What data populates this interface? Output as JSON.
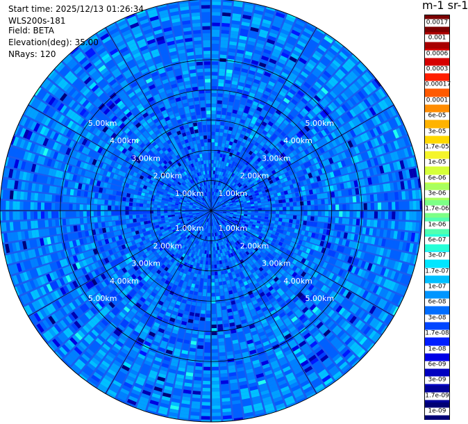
{
  "info": {
    "start_time": "Start time: 2025/12/13 01:26:34",
    "instrument": "WLS200s-181",
    "field": "Field: BETA",
    "elevation": "Elevation(deg): 35.00",
    "nrays": "NRays: 120"
  },
  "units_label": "m-1 sr-1",
  "chart_data": {
    "type": "heatmap",
    "projection": "polar",
    "field": "BETA",
    "n_rays": 120,
    "elevation_deg": 35.0,
    "range_rings_km": [
      1,
      2,
      3,
      4,
      5
    ],
    "ring_labels": [
      "1.00km",
      "2.00km",
      "3.00km",
      "4.00km",
      "5.00km"
    ],
    "max_range_km": 7.0,
    "colorbar": {
      "ticks": [
        "0.0017",
        "0.001",
        "0.0006",
        "0.0003",
        "0.00017",
        "0.0001",
        "6e-05",
        "3e-05",
        "1.7e-05",
        "1e-05",
        "6e-06",
        "3e-06",
        "1.7e-06",
        "1e-06",
        "6e-07",
        "3e-07",
        "1.7e-07",
        "1e-07",
        "6e-08",
        "3e-08",
        "1.7e-08",
        "1e-08",
        "6e-09",
        "3e-09",
        "1.7e-09",
        "1e-09"
      ],
      "colors": [
        "#7a0000",
        "#a80000",
        "#d60000",
        "#ff1e00",
        "#ff5a00",
        "#ff8c00",
        "#ffb300",
        "#ffd900",
        "#f5f52a",
        "#d6ff3a",
        "#a8ff5e",
        "#7cff86",
        "#52ffb0",
        "#27ffd8",
        "#00e6ff",
        "#00bfff",
        "#0096ff",
        "#006dff",
        "#0046ff",
        "#001eff",
        "#0000e6",
        "#0000c0",
        "#00009a",
        "#000074"
      ]
    },
    "typical_value_range": [
      "1.7e-08",
      "1.7e-07"
    ]
  }
}
